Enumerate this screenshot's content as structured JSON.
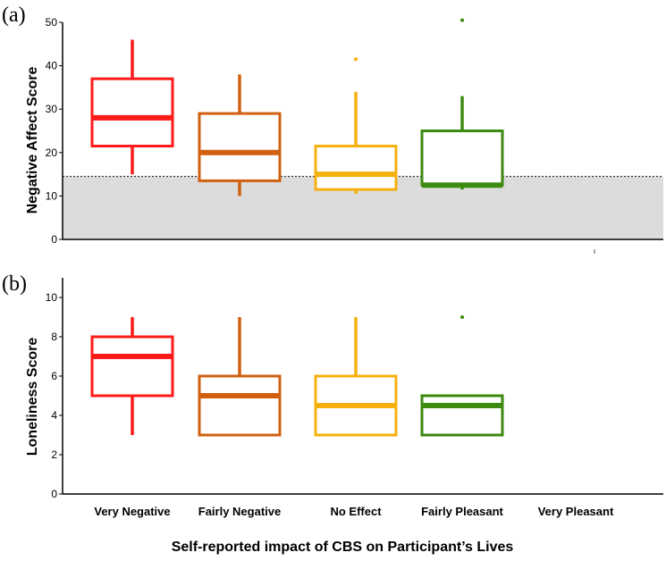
{
  "figure": {
    "xlabel": "Self-reported impact of CBS on Participant’s Lives",
    "categories": [
      "Very Negative",
      "Fairly Negative",
      "No Effect",
      "Fairly Pleasant",
      "Very Pleasant"
    ]
  },
  "chart_data": [
    {
      "type": "box",
      "panel": "(a)",
      "ylabel": "Negative Affect Score",
      "ylim": [
        0,
        50
      ],
      "yticks": [
        0,
        10,
        20,
        30,
        40,
        50
      ],
      "reference_line": 14.5,
      "shaded_region": [
        0,
        14.5
      ],
      "categories": [
        "Very Negative",
        "Fairly Negative",
        "No Effect",
        "Fairly Pleasant",
        "Very Pleasant"
      ],
      "boxes": [
        {
          "category": "Very Negative",
          "color": "#ff1a1a",
          "whisker_low": 15,
          "q1": 21.5,
          "median": 28,
          "q3": 37,
          "whisker_high": 46,
          "outliers": []
        },
        {
          "category": "Fairly Negative",
          "color": "#d06010",
          "whisker_low": 10,
          "q1": 13.5,
          "median": 20,
          "q3": 29,
          "whisker_high": 38,
          "outliers": []
        },
        {
          "category": "No Effect",
          "color": "#f6b00e",
          "whisker_low": 10.5,
          "q1": 11.5,
          "median": 15,
          "q3": 21.5,
          "whisker_high": 34,
          "outliers": [
            41.5
          ]
        },
        {
          "category": "Fairly Pleasant",
          "color": "#3c8a10",
          "whisker_low": 11.5,
          "q1": 12.5,
          "median": 12.5,
          "q3": 25,
          "whisker_high": 33,
          "outliers": [
            50.5
          ]
        }
      ]
    },
    {
      "type": "box",
      "panel": "(b)",
      "ylabel": "Loneliness Score",
      "ylim": [
        0,
        11
      ],
      "yticks": [
        0,
        2,
        4,
        6,
        8,
        10
      ],
      "categories": [
        "Very Negative",
        "Fairly Negative",
        "No Effect",
        "Fairly Pleasant",
        "Very Pleasant"
      ],
      "boxes": [
        {
          "category": "Very Negative",
          "color": "#ff1a1a",
          "whisker_low": 3,
          "q1": 5,
          "median": 7,
          "q3": 8,
          "whisker_high": 9,
          "outliers": []
        },
        {
          "category": "Fairly Negative",
          "color": "#d06010",
          "whisker_low": 3,
          "q1": 3,
          "median": 5,
          "q3": 6,
          "whisker_high": 9,
          "outliers": []
        },
        {
          "category": "No Effect",
          "color": "#f6b00e",
          "whisker_low": 3,
          "q1": 3,
          "median": 4.5,
          "q3": 6,
          "whisker_high": 9,
          "outliers": []
        },
        {
          "category": "Fairly Pleasant",
          "color": "#3c8a10",
          "whisker_low": 3,
          "q1": 3,
          "median": 4.5,
          "q3": 5,
          "whisker_high": 5,
          "outliers": [
            9
          ]
        }
      ]
    }
  ]
}
